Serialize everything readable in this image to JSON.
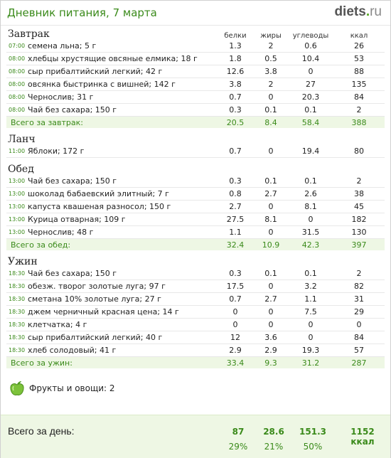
{
  "header": {
    "title": "Дневник питания, 7 марта",
    "logo": {
      "main": "diets",
      "dot": ".",
      "tld": "ru"
    }
  },
  "columns": [
    "белки",
    "жиры",
    "углеводы",
    "ккал"
  ],
  "meals": [
    {
      "name": "Завтрак",
      "items": [
        {
          "time": "07:00",
          "food": "семена льна; 5 г",
          "p": "1.3",
          "f": "2",
          "c": "0.6",
          "kcal": "26"
        },
        {
          "time": "08:00",
          "food": "хлебцы хрустящие овсяные елмика; 18 г",
          "p": "1.8",
          "f": "0.5",
          "c": "10.4",
          "kcal": "53"
        },
        {
          "time": "08:00",
          "food": "сыр прибалтийский легкий; 42 г",
          "p": "12.6",
          "f": "3.8",
          "c": "0",
          "kcal": "88"
        },
        {
          "time": "08:00",
          "food": "овсянка быстринка с вишней; 142 г",
          "p": "3.8",
          "f": "2",
          "c": "27",
          "kcal": "135"
        },
        {
          "time": "08:00",
          "food": "Чернослив; 31 г",
          "p": "0.7",
          "f": "0",
          "c": "20.3",
          "kcal": "84"
        },
        {
          "time": "08:00",
          "food": "Чай без сахара; 150 г",
          "p": "0.3",
          "f": "0.1",
          "c": "0.1",
          "kcal": "2"
        }
      ],
      "total": {
        "label": "Всего за завтрак:",
        "p": "20.5",
        "f": "8.4",
        "c": "58.4",
        "kcal": "388"
      }
    },
    {
      "name": "Ланч",
      "items": [
        {
          "time": "11:00",
          "food": "Яблоки; 172 г",
          "p": "0.7",
          "f": "0",
          "c": "19.4",
          "kcal": "80"
        }
      ],
      "total": null
    },
    {
      "name": "Обед",
      "items": [
        {
          "time": "13:00",
          "food": "Чай без сахара; 150 г",
          "p": "0.3",
          "f": "0.1",
          "c": "0.1",
          "kcal": "2"
        },
        {
          "time": "13:00",
          "food": "шоколад бабаевский элитный; 7 г",
          "p": "0.8",
          "f": "2.7",
          "c": "2.6",
          "kcal": "38"
        },
        {
          "time": "13:00",
          "food": "капуста квашеная разносол; 150 г",
          "p": "2.7",
          "f": "0",
          "c": "8.1",
          "kcal": "45"
        },
        {
          "time": "13:00",
          "food": "Курица отварная; 109 г",
          "p": "27.5",
          "f": "8.1",
          "c": "0",
          "kcal": "182"
        },
        {
          "time": "13:00",
          "food": "Чернослив; 48 г",
          "p": "1.1",
          "f": "0",
          "c": "31.5",
          "kcal": "130"
        }
      ],
      "total": {
        "label": "Всего за обед:",
        "p": "32.4",
        "f": "10.9",
        "c": "42.3",
        "kcal": "397"
      }
    },
    {
      "name": "Ужин",
      "items": [
        {
          "time": "18:30",
          "food": "Чай без сахара; 150 г",
          "p": "0.3",
          "f": "0.1",
          "c": "0.1",
          "kcal": "2"
        },
        {
          "time": "18:30",
          "food": "обезж. творог золотые луга; 97 г",
          "p": "17.5",
          "f": "0",
          "c": "3.2",
          "kcal": "82"
        },
        {
          "time": "18:30",
          "food": "сметана 10% золотые луга; 27 г",
          "p": "0.7",
          "f": "2.7",
          "c": "1.1",
          "kcal": "31"
        },
        {
          "time": "18:30",
          "food": "джем черничный красная цена; 14 г",
          "p": "0",
          "f": "0",
          "c": "7.5",
          "kcal": "29"
        },
        {
          "time": "18:30",
          "food": "клетчатка; 4 г",
          "p": "0",
          "f": "0",
          "c": "0",
          "kcal": "0"
        },
        {
          "time": "18:30",
          "food": "сыр прибалтийский легкий; 40 г",
          "p": "12",
          "f": "3.6",
          "c": "0",
          "kcal": "84"
        },
        {
          "time": "18:30",
          "food": "хлеб солодовый; 41 г",
          "p": "2.9",
          "f": "2.9",
          "c": "19.3",
          "kcal": "57"
        }
      ],
      "total": {
        "label": "Всего за ужин:",
        "p": "33.4",
        "f": "9.3",
        "c": "31.2",
        "kcal": "287"
      }
    }
  ],
  "fruits": {
    "label": "Фрукты и овощи: 2",
    "icon": "apple-icon"
  },
  "day_total": {
    "label": "Всего за день:",
    "p": "87",
    "f": "28.6",
    "c": "151.3",
    "kcal": "1152 ккал",
    "p_pct": "29%",
    "f_pct": "21%",
    "c_pct": "50%"
  },
  "colors": {
    "accent": "#3a8a1a",
    "total_bg": "#eef7e4"
  }
}
